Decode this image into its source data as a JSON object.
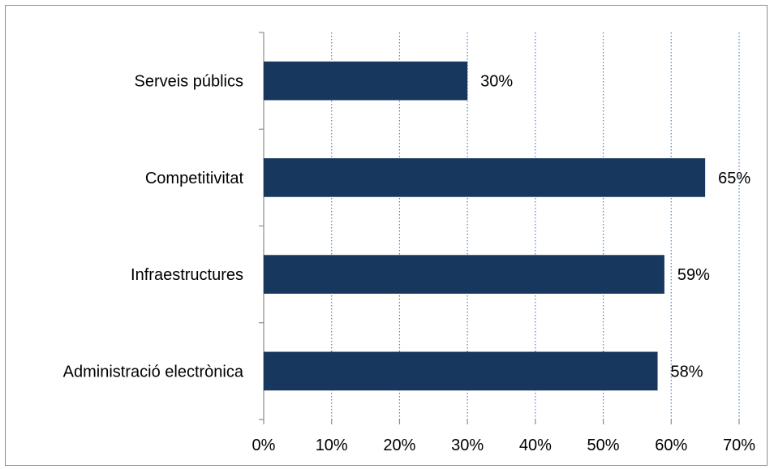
{
  "chart_data": {
    "type": "bar",
    "orientation": "horizontal",
    "categories": [
      "Serveis públics",
      "Competitivitat",
      "Infraestructures",
      "Administració electrònica"
    ],
    "values": [
      30,
      65,
      59,
      58
    ],
    "data_labels": [
      "30%",
      "65%",
      "59%",
      "58%"
    ],
    "xlim": [
      0,
      70
    ],
    "x_ticks": [
      0,
      10,
      20,
      30,
      40,
      50,
      60,
      70
    ],
    "x_tick_labels": [
      "0%",
      "10%",
      "20%",
      "30%",
      "40%",
      "50%",
      "60%",
      "70%"
    ],
    "grid": "vertical dotted",
    "legend": "none",
    "bar_color": "#17375E",
    "grid_color": "#4F81BD"
  }
}
